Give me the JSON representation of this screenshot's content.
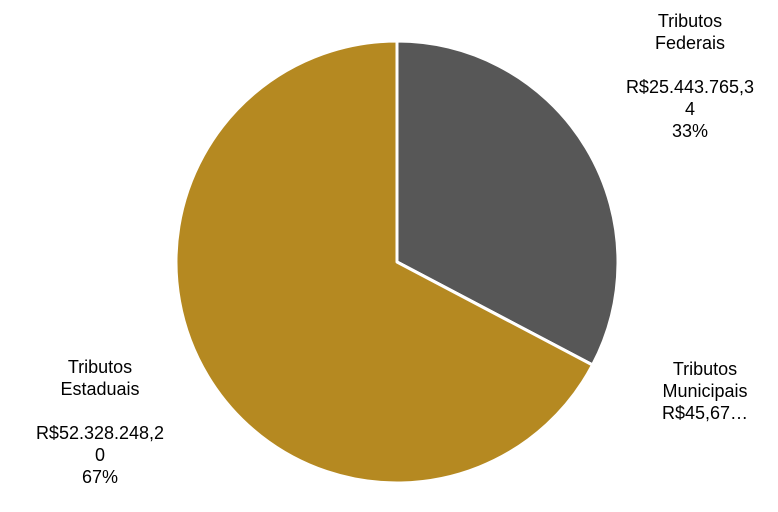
{
  "chart_data": {
    "type": "pie",
    "slices": [
      {
        "label": "Tributos Federais",
        "value": 25443765.34,
        "value_text": "R$25.443.765,34",
        "percent_text": "33%",
        "color": "#575757"
      },
      {
        "label": "Tributos Municipais",
        "value": 45.67,
        "value_text": "R$45,67…",
        "percent_text": "",
        "color": "#ffffff"
      },
      {
        "label": "Tributos Estaduais",
        "value": 52328248.2,
        "value_text": "R$52.328.248,20",
        "percent_text": "67%",
        "color": "#b58921"
      }
    ],
    "legend": "none"
  },
  "labels": {
    "federal": {
      "line1": "Tributos",
      "line2": "Federais",
      "value1": "R$25.443.765,3",
      "value2": "4",
      "percent": "33%"
    },
    "municipal": {
      "line1": "Tributos",
      "line2": "Municipais",
      "value": "R$45,67…"
    },
    "estadual": {
      "line1": "Tributos",
      "line2": "Estaduais",
      "value1": "R$52.328.248,2",
      "value2": "0",
      "percent": "67%"
    }
  }
}
